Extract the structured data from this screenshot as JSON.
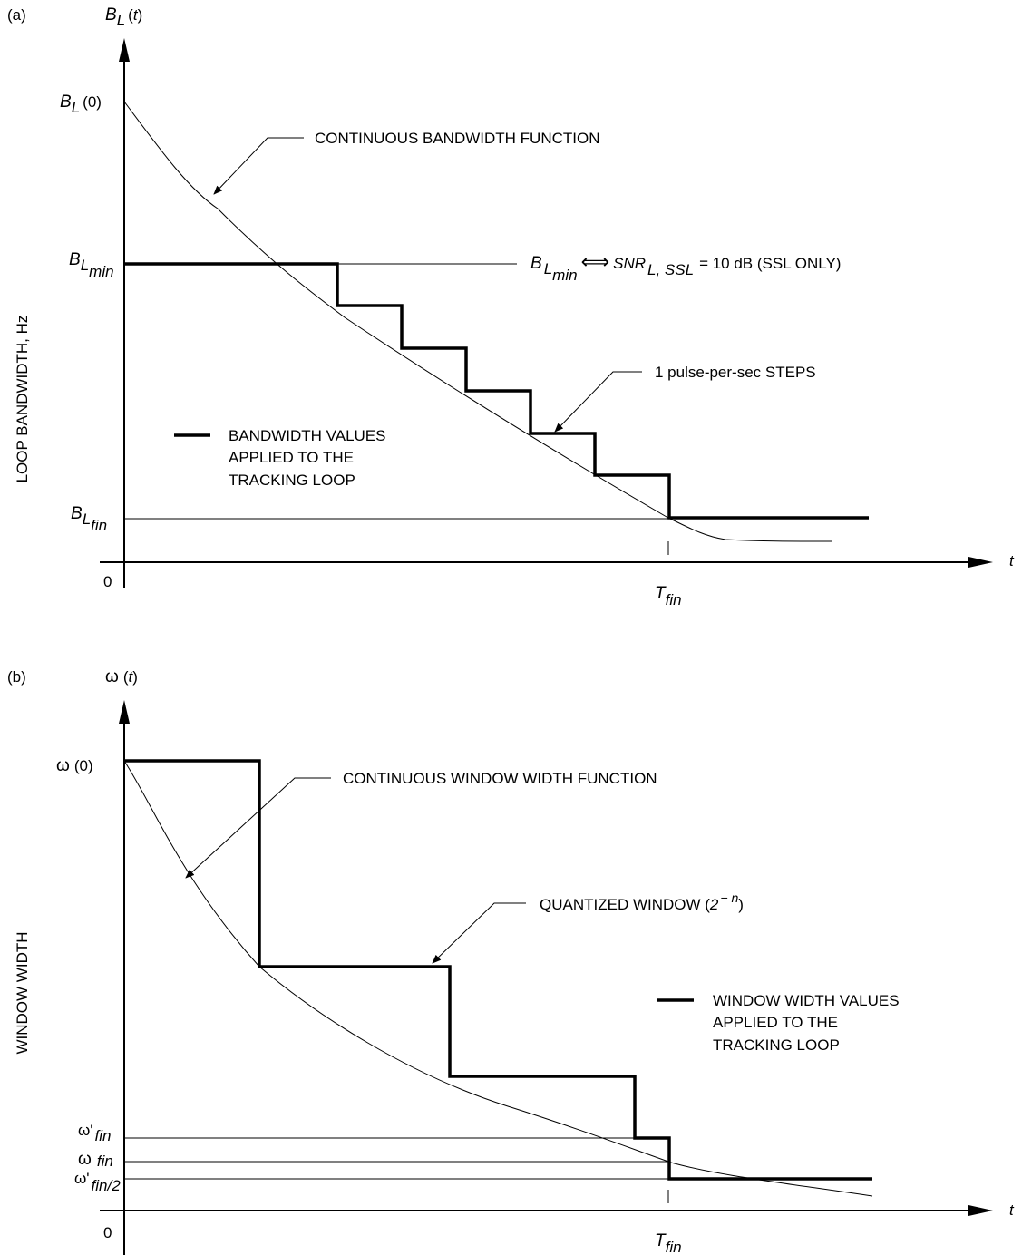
{
  "panel_a": {
    "panel_label": "(a)",
    "y_axis_title": "LOOP BANDWIDTH, Hz",
    "y_axis_top": {
      "main": "B",
      "sub": "L",
      "arg_open": "(",
      "arg_var": "t",
      "arg_close": ")"
    },
    "x_axis_var": "t",
    "origin": "0",
    "tick_BL0": {
      "main": "B",
      "sub": "L",
      "arg": "(0)"
    },
    "tick_BLmin": {
      "main": "B",
      "sub": "L",
      "subsub": "min"
    },
    "tick_BLfin": {
      "main": "B",
      "sub": "L",
      "subsub": "fin"
    },
    "tick_Tfin": {
      "main": "T",
      "sub": "fin"
    },
    "callout_continuous": "CONTINUOUS BANDWIDTH FUNCTION",
    "callout_steps": "1 pulse-per-sec STEPS",
    "equation": {
      "lhs_main": "B",
      "lhs_sub": "L",
      "lhs_subsub": "min",
      "arrow": "⟺",
      "rhs_main": "SNR",
      "rhs_sub": "L, SSL",
      "rhs_tail": "= 10 dB (SSL ONLY)"
    },
    "legend": [
      "BANDWIDTH VALUES",
      "APPLIED TO THE",
      "TRACKING LOOP"
    ]
  },
  "panel_b": {
    "panel_label": "(b)",
    "y_axis_title": "WINDOW WIDTH",
    "y_axis_top": {
      "main": "ω",
      "arg_open": "(",
      "arg_var": "t",
      "arg_close": ")"
    },
    "x_axis_var": "t",
    "origin": "0",
    "tick_w0": {
      "main": "ω",
      "arg": "(0)"
    },
    "tick_wpfin": {
      "main": "ω'",
      "sub": "fin"
    },
    "tick_wfin": {
      "main": "ω",
      "sub": "fin"
    },
    "tick_wpfin2": {
      "main": "ω'",
      "sub": "fin/2"
    },
    "tick_Tfin": {
      "main": "T",
      "sub": "fin"
    },
    "callout_continuous": "CONTINUOUS WINDOW WIDTH FUNCTION",
    "callout_quantized": {
      "text": "QUANTIZED WINDOW (",
      "expr": "2",
      "exp": "− n",
      "close": ")"
    },
    "legend": [
      "WINDOW WIDTH VALUES",
      "APPLIED TO THE",
      "TRACKING LOOP"
    ]
  }
}
